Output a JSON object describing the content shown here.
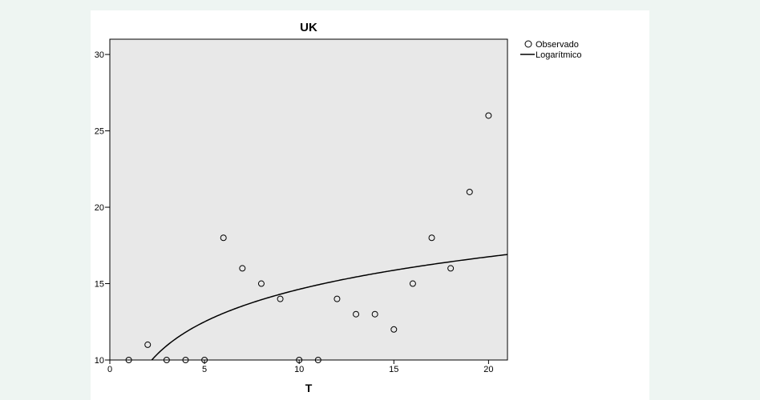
{
  "colors": {
    "page_background": "#eef5f2",
    "panel_background": "#ffffff",
    "plot_background": "#e8e8e8",
    "ink": "#000000"
  },
  "chart_data": {
    "type": "scatter",
    "title": "UK",
    "xlabel": "T",
    "ylabel": "",
    "xlim": [
      0,
      21
    ],
    "ylim": [
      10,
      31
    ],
    "x_ticks": [
      0,
      5,
      10,
      15,
      20
    ],
    "y_ticks": [
      10,
      15,
      20,
      25,
      30
    ],
    "grid": false,
    "legend_position": "top-right outside",
    "series": [
      {
        "name": "Observado",
        "kind": "points",
        "marker": "open-circle",
        "x": [
          1,
          2,
          3,
          4,
          5,
          6,
          7,
          8,
          9,
          10,
          11,
          12,
          13,
          14,
          15,
          16,
          17,
          18,
          19,
          20
        ],
        "y": [
          10,
          11,
          10,
          10,
          10,
          18,
          16,
          15,
          14,
          10,
          10,
          14,
          13,
          13,
          12,
          15,
          18,
          16,
          21,
          26
        ]
      },
      {
        "name": "Logarítmico",
        "kind": "curve",
        "model": "logarithmic",
        "equation": {
          "a": 7.56,
          "b": 3.07
        }
      }
    ]
  }
}
